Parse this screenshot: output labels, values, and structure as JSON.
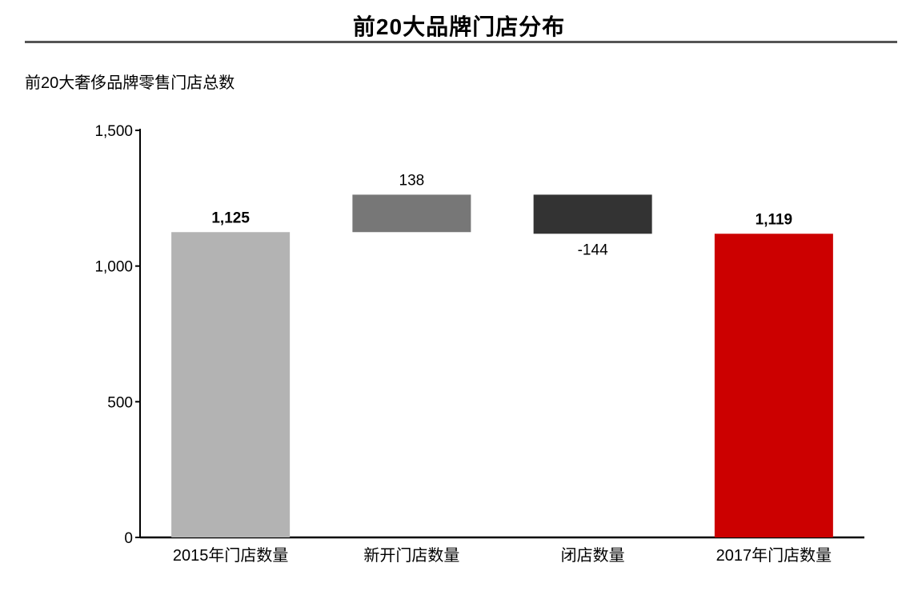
{
  "header": {
    "title": "前20大品牌门店分布",
    "subtitle": "前20大奢侈品牌零售门店总数"
  },
  "chart_data": {
    "type": "bar",
    "subtype": "waterfall",
    "categories": [
      "2015年门店数量",
      "新开门店数量",
      "闭店数量",
      "2017年门店数量"
    ],
    "values": [
      1125,
      138,
      -144,
      1119
    ],
    "value_labels": [
      "1,125",
      "138",
      "-144",
      "1,119"
    ],
    "bar_kinds": [
      "total",
      "delta",
      "delta",
      "total"
    ],
    "colors": [
      "#b3b3b3",
      "#777777",
      "#333333",
      "#cc0000"
    ],
    "ylim": [
      0,
      1500
    ],
    "yticks": [
      0,
      500,
      1000,
      1500
    ],
    "ytick_labels": [
      "0",
      "500",
      "1,000",
      "1,500"
    ],
    "grid": false,
    "legend": "none",
    "xlabel": "",
    "ylabel": ""
  }
}
